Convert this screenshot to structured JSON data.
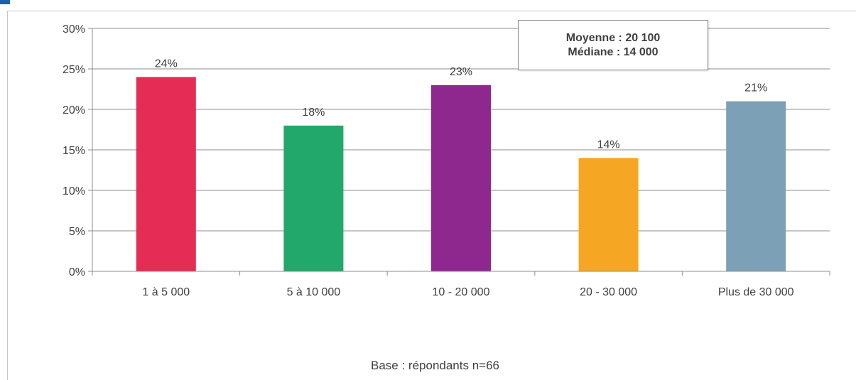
{
  "chart_data": {
    "type": "bar",
    "categories": [
      "1 à 5 000",
      "5 à 10 000",
      "10 - 20 000",
      "20 - 30 000",
      "Plus de 30 000"
    ],
    "values": [
      24,
      18,
      23,
      14,
      21
    ],
    "value_labels": [
      "24%",
      "18%",
      "23%",
      "14%",
      "21%"
    ],
    "colors": [
      "#e52c55",
      "#22a86a",
      "#8e278e",
      "#f5a623",
      "#7ca0b6"
    ],
    "ylim": [
      0,
      30
    ],
    "yticks": [
      0,
      5,
      10,
      15,
      20,
      25,
      30
    ],
    "ytick_labels": [
      "0%",
      "5%",
      "10%",
      "15%",
      "20%",
      "25%",
      "30%"
    ],
    "grid": true,
    "annotation": {
      "line1": "Moyenne : 20 100",
      "line2": "Médiane : 14 000"
    },
    "footnote": "Base : répondants n=66"
  }
}
